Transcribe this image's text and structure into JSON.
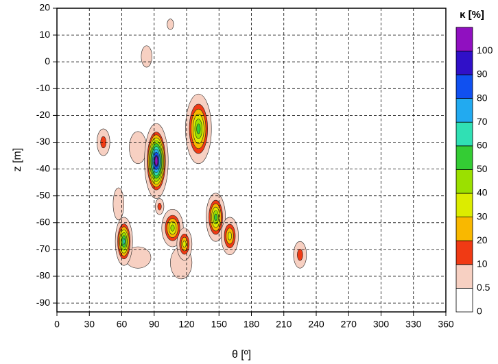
{
  "chart_data": {
    "type": "contour",
    "xlabel": "θ [º]",
    "ylabel": "z [m]",
    "colorbar_label": "κ [%]",
    "xlim": [
      0,
      360
    ],
    "xticks": [
      0,
      30,
      60,
      90,
      120,
      150,
      180,
      210,
      240,
      270,
      300,
      330,
      360
    ],
    "ylim": [
      -93.3,
      20
    ],
    "yticks": [
      20,
      10,
      0,
      -10,
      -20,
      -30,
      -40,
      -50,
      -60,
      -70,
      -80,
      -90
    ],
    "grid": true,
    "levels": [
      0,
      0.5,
      10,
      20,
      30,
      40,
      50,
      60,
      70,
      80,
      90,
      100
    ],
    "colors": [
      "#ffffff",
      "#f7d0c2",
      "#f03a14",
      "#f9b800",
      "#dcec00",
      "#9be000",
      "#34cc34",
      "#30e0b4",
      "#22aaf0",
      "#1050f0",
      "#3010c8",
      "#9010c0"
    ],
    "blobs": [
      {
        "theta": 105,
        "z": 14,
        "peak": 0.5,
        "rx": 3,
        "ry": 2
      },
      {
        "theta": 83,
        "z": 2,
        "peak": 0.5,
        "rx": 5,
        "ry": 4
      },
      {
        "theta": 43,
        "z": -30,
        "peak": 10,
        "rx": 6,
        "ry": 5
      },
      {
        "theta": 75,
        "z": -32,
        "peak": 0.5,
        "rx": 8,
        "ry": 6
      },
      {
        "theta": 115,
        "z": -75,
        "peak": 0.5,
        "rx": 10,
        "ry": 6
      },
      {
        "theta": 75,
        "z": -73,
        "peak": 0.5,
        "rx": 12,
        "ry": 4
      },
      {
        "theta": 92,
        "z": -37,
        "peak": 100,
        "rx": 11,
        "ry": 14
      },
      {
        "theta": 95,
        "z": -54,
        "peak": 10,
        "rx": 4,
        "ry": 3
      },
      {
        "theta": 57,
        "z": -53,
        "peak": 5,
        "rx": 5,
        "ry": 6
      },
      {
        "theta": 62,
        "z": -67,
        "peak": 60,
        "rx": 8,
        "ry": 9
      },
      {
        "theta": 107,
        "z": -62,
        "peak": 40,
        "rx": 10,
        "ry": 7
      },
      {
        "theta": 118,
        "z": -68,
        "peak": 30,
        "rx": 7,
        "ry": 6
      },
      {
        "theta": 131,
        "z": -25,
        "peak": 50,
        "rx": 12,
        "ry": 13
      },
      {
        "theta": 147,
        "z": -58,
        "peak": 50,
        "rx": 9,
        "ry": 9
      },
      {
        "theta": 160,
        "z": -65,
        "peak": 30,
        "rx": 8,
        "ry": 7
      },
      {
        "theta": 225,
        "z": -72,
        "peak": 10,
        "rx": 6,
        "ry": 5
      }
    ]
  }
}
